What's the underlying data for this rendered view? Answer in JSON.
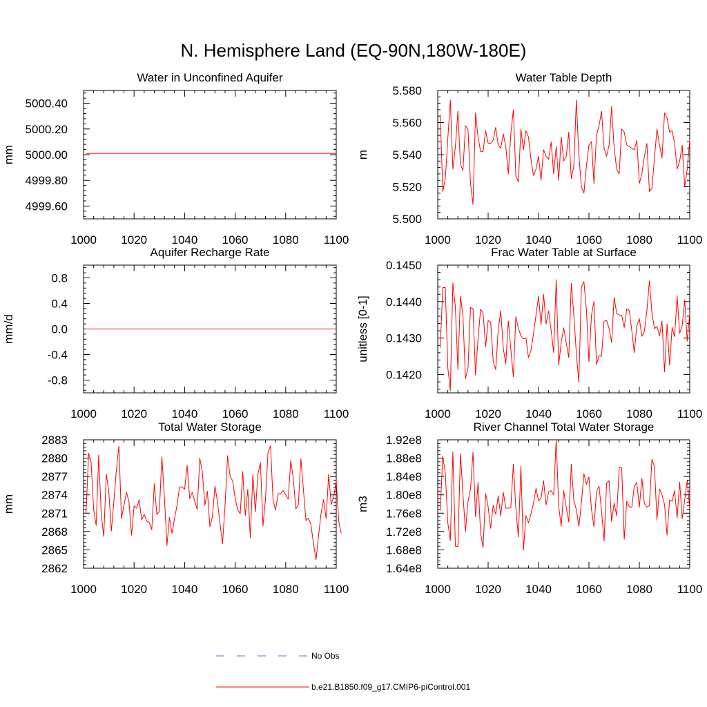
{
  "title": "N. Hemisphere Land (EQ-90N,180W-180E)",
  "colors": {
    "model": "#ff0000",
    "obs": "#5a6fd6",
    "axis": "#000000"
  },
  "legend": {
    "obs_label": "No Obs",
    "model_label": "b.e21.B1850.f09_g17.CMIP6-piControl.001"
  },
  "chart_data": [
    {
      "type": "line",
      "title": "Water in Unconfined Aquifer",
      "xlabel": "",
      "ylabel": "mm",
      "xlim": [
        1000,
        1100
      ],
      "ylim": [
        4999.5,
        5000.5
      ],
      "xticks": [
        1000,
        1020,
        1040,
        1060,
        1080,
        1100
      ],
      "xtick_labels": [
        "1000",
        "1020",
        "1040",
        "1060",
        "1080",
        "1100"
      ],
      "yticks": [
        4999.6,
        4999.8,
        5000.0,
        5000.2,
        5000.4
      ],
      "ytick_labels": [
        "4999.60",
        "4999.80",
        "5000.00",
        "5000.20",
        "5000.40"
      ],
      "x_start": 1001,
      "values": [
        5000.01,
        5000.01,
        5000.01,
        5000.01,
        5000.01,
        5000.01,
        5000.01,
        5000.01,
        5000.01,
        5000.01,
        5000.01,
        5000.01,
        5000.01,
        5000.01,
        5000.01,
        5000.01,
        5000.01,
        5000.01,
        5000.01,
        5000.01,
        5000.01,
        5000.01,
        5000.01,
        5000.01,
        5000.01,
        5000.01,
        5000.01,
        5000.01,
        5000.01,
        5000.01,
        5000.01,
        5000.01,
        5000.01,
        5000.01,
        5000.01,
        5000.01,
        5000.01,
        5000.01,
        5000.01,
        5000.01,
        5000.01,
        5000.01,
        5000.01,
        5000.01,
        5000.01,
        5000.01,
        5000.01,
        5000.01,
        5000.01,
        5000.01,
        5000.01,
        5000.01,
        5000.01,
        5000.01,
        5000.01,
        5000.01,
        5000.01,
        5000.01,
        5000.01,
        5000.01,
        5000.01,
        5000.01,
        5000.01,
        5000.01,
        5000.01,
        5000.01,
        5000.01,
        5000.01,
        5000.01,
        5000.01,
        5000.01,
        5000.01,
        5000.01,
        5000.01,
        5000.01,
        5000.01,
        5000.01,
        5000.01,
        5000.01,
        5000.01,
        5000.01,
        5000.01,
        5000.01,
        5000.01,
        5000.01,
        5000.01,
        5000.01,
        5000.01,
        5000.01,
        5000.01,
        5000.01,
        5000.01,
        5000.01,
        5000.01,
        5000.01,
        5000.01,
        5000.01,
        5000.01,
        5000.01,
        5000.01
      ]
    },
    {
      "type": "line",
      "title": "Water Table Depth",
      "xlabel": "",
      "ylabel": "m",
      "xlim": [
        1000,
        1100
      ],
      "ylim": [
        5.5,
        5.58
      ],
      "xticks": [
        1000,
        1020,
        1040,
        1060,
        1080,
        1100
      ],
      "xtick_labels": [
        "1000",
        "1020",
        "1040",
        "1060",
        "1080",
        "1100"
      ],
      "yticks": [
        5.5,
        5.52,
        5.54,
        5.56,
        5.58
      ],
      "ytick_labels": [
        "5.500",
        "5.520",
        "5.540",
        "5.560",
        "5.580"
      ],
      "x_start": 1001,
      "values": [
        5.565,
        5.517,
        5.525,
        5.55,
        5.574,
        5.531,
        5.545,
        5.567,
        5.534,
        5.53,
        5.558,
        5.556,
        5.522,
        5.509,
        5.566,
        5.551,
        5.542,
        5.542,
        5.555,
        5.547,
        5.547,
        5.549,
        5.557,
        5.546,
        5.544,
        5.553,
        5.545,
        5.528,
        5.553,
        5.568,
        5.527,
        5.523,
        5.556,
        5.543,
        5.555,
        5.551,
        5.537,
        5.527,
        5.531,
        5.539,
        5.524,
        5.543,
        5.539,
        5.537,
        5.548,
        5.528,
        5.545,
        5.524,
        5.551,
        5.536,
        5.539,
        5.554,
        5.525,
        5.533,
        5.574,
        5.54,
        5.52,
        5.516,
        5.533,
        5.546,
        5.548,
        5.522,
        5.552,
        5.558,
        5.567,
        5.544,
        5.539,
        5.546,
        5.57,
        5.544,
        5.531,
        5.528,
        5.556,
        5.554,
        5.546,
        5.545,
        5.544,
        5.543,
        5.549,
        5.522,
        5.528,
        5.539,
        5.547,
        5.517,
        5.519,
        5.538,
        5.556,
        5.546,
        5.538,
        5.566,
        5.563,
        5.554,
        5.555,
        5.547,
        5.531,
        5.536,
        5.546,
        5.52,
        5.531,
        5.549
      ]
    },
    {
      "type": "line",
      "title": "Aquifer Recharge Rate",
      "xlabel": "",
      "ylabel": "mm/d",
      "xlim": [
        1000,
        1100
      ],
      "ylim": [
        -1.0,
        1.0
      ],
      "xticks": [
        1000,
        1020,
        1040,
        1060,
        1080,
        1100
      ],
      "xtick_labels": [
        "1000",
        "1020",
        "1040",
        "1060",
        "1080",
        "1100"
      ],
      "yticks": [
        -0.8,
        -0.4,
        0.0,
        0.4,
        0.8
      ],
      "ytick_labels": [
        "-0.8",
        "-0.4",
        "0.0",
        "0.4",
        "0.8"
      ],
      "x_start": 1001,
      "values": [
        0,
        0,
        0,
        0,
        0,
        0,
        0,
        0,
        0,
        0,
        0,
        0,
        0,
        0,
        0,
        0,
        0,
        0,
        0,
        0,
        0,
        0,
        0,
        0,
        0,
        0,
        0,
        0,
        0,
        0,
        0,
        0,
        0,
        0,
        0,
        0,
        0,
        0,
        0,
        0,
        0,
        0,
        0,
        0,
        0,
        0,
        0,
        0,
        0,
        0,
        0,
        0,
        0,
        0,
        0,
        0,
        0,
        0,
        0,
        0,
        0,
        0,
        0,
        0,
        0,
        0,
        0,
        0,
        0,
        0,
        0,
        0,
        0,
        0,
        0,
        0,
        0,
        0,
        0,
        0,
        0,
        0,
        0,
        0,
        0,
        0,
        0,
        0,
        0,
        0,
        0,
        0,
        0,
        0,
        0,
        0,
        0,
        0,
        0,
        0
      ]
    },
    {
      "type": "line",
      "title": "Frac Water Table at Surface",
      "xlabel": "",
      "ylabel": "unitless [0-1]",
      "xlim": [
        1000,
        1100
      ],
      "ylim": [
        0.1415,
        0.145
      ],
      "xticks": [
        1000,
        1020,
        1040,
        1060,
        1080,
        1100
      ],
      "xtick_labels": [
        "1000",
        "1020",
        "1040",
        "1060",
        "1080",
        "1100"
      ],
      "yticks": [
        0.142,
        0.143,
        0.144,
        0.145
      ],
      "ytick_labels": [
        "0.1420",
        "0.1430",
        "0.1440",
        "0.1450"
      ],
      "x_start": 1001,
      "values": [
        0.14274,
        0.14438,
        0.14439,
        0.14219,
        0.14156,
        0.14451,
        0.14385,
        0.14214,
        0.14415,
        0.14363,
        0.14189,
        0.14217,
        0.14384,
        0.14381,
        0.14199,
        0.14297,
        0.14379,
        0.14369,
        0.14276,
        0.14348,
        0.14344,
        0.14237,
        0.14214,
        0.14321,
        0.14375,
        0.14273,
        0.14229,
        0.14347,
        0.1427,
        0.14194,
        0.14359,
        0.14327,
        0.14306,
        0.14298,
        0.14301,
        0.14247,
        0.14267,
        0.14312,
        0.14363,
        0.14415,
        0.14337,
        0.1442,
        0.14339,
        0.14375,
        0.14321,
        0.14261,
        0.1446,
        0.14226,
        0.14289,
        0.14328,
        0.14286,
        0.14247,
        0.1445,
        0.14364,
        0.14258,
        0.14179,
        0.1444,
        0.14455,
        0.14378,
        0.14235,
        0.14362,
        0.14401,
        0.14227,
        0.14252,
        0.1425,
        0.14346,
        0.14349,
        0.14326,
        0.14288,
        0.14412,
        0.14368,
        0.14363,
        0.14363,
        0.14329,
        0.1438,
        0.14376,
        0.14321,
        0.1426,
        0.14334,
        0.14353,
        0.14305,
        0.14319,
        0.14376,
        0.14457,
        0.14369,
        0.14326,
        0.14332,
        0.14306,
        0.14347,
        0.14207,
        0.14339,
        0.14226,
        0.14329,
        0.14304,
        0.14416,
        0.14313,
        0.14334,
        0.14405,
        0.14292,
        0.14369
      ]
    },
    {
      "type": "line",
      "title": "Total Water Storage",
      "xlabel": "",
      "ylabel": "mm",
      "xlim": [
        1000,
        1100
      ],
      "ylim": [
        2862,
        2883
      ],
      "xticks": [
        1000,
        1020,
        1040,
        1060,
        1080,
        1100
      ],
      "xtick_labels": [
        "1000",
        "1020",
        "1040",
        "1060",
        "1080",
        "1100"
      ],
      "yticks": [
        2862,
        2865,
        2868,
        2871,
        2874,
        2877,
        2880,
        2883
      ],
      "ytick_labels": [
        "2862",
        "2865",
        "2868",
        "2871",
        "2874",
        "2877",
        "2880",
        "2883"
      ],
      "x_start": 1001,
      "values": [
        2871.0,
        2880.8,
        2879.3,
        2871.6,
        2869.0,
        2880.5,
        2870.8,
        2867.2,
        2877.4,
        2874.5,
        2868.1,
        2872.9,
        2878.1,
        2882.0,
        2870.1,
        2872.3,
        2874.4,
        2872.8,
        2867.4,
        2872.2,
        2871.8,
        2873.2,
        2869.9,
        2870.8,
        2869.7,
        2869.5,
        2868.3,
        2875.8,
        2870.8,
        2871.3,
        2880.2,
        2873.6,
        2865.7,
        2870.3,
        2867.7,
        2870.1,
        2872.3,
        2875.3,
        2875.3,
        2874.9,
        2878.8,
        2873.4,
        2874.4,
        2873.0,
        2871.6,
        2880.0,
        2877.8,
        2872.3,
        2874.6,
        2868.8,
        2870.4,
        2875.4,
        2872.9,
        2869.3,
        2866.0,
        2872.3,
        2880.4,
        2877.0,
        2876.3,
        2873.4,
        2871.6,
        2870.9,
        2877.8,
        2870.6,
        2874.9,
        2867.0,
        2877.3,
        2871.2,
        2877.4,
        2879.3,
        2868.9,
        2873.3,
        2881.0,
        2882.0,
        2873.1,
        2871.5,
        2874.2,
        2874.2,
        2874.7,
        2874.0,
        2873.3,
        2879.6,
        2876.7,
        2871.7,
        2872.4,
        2879.9,
        2874.9,
        2869.8,
        2870.2,
        2869.1,
        2866.0,
        2863.4,
        2867.3,
        2871.0,
        2873.2,
        2870.1,
        2877.4,
        2872.4,
        2873.7,
        2876.3,
        2869.6,
        2867.7
      ]
    },
    {
      "type": "line",
      "title": "River Channel Total Water Storage",
      "xlabel": "",
      "ylabel": "m3",
      "xlim": [
        1000,
        1100
      ],
      "ylim": [
        164000000,
        192000000
      ],
      "xticks": [
        1000,
        1020,
        1040,
        1060,
        1080,
        1100
      ],
      "xtick_labels": [
        "1000",
        "1020",
        "1040",
        "1060",
        "1080",
        "1100"
      ],
      "yticks": [
        164000000,
        168000000,
        172000000,
        176000000,
        180000000,
        184000000,
        188000000,
        192000000
      ],
      "ytick_labels": [
        "1.64e8",
        "1.68e8",
        "1.72e8",
        "1.76e8",
        "1.80e8",
        "1.84e8",
        "1.88e8",
        "1.92e8"
      ],
      "x_start": 1001,
      "values": [
        176600000,
        188400000,
        184800000,
        173900000,
        170000000,
        189400000,
        168800000,
        168700000,
        189000000,
        180200000,
        172000000,
        178500000,
        181300000,
        189300000,
        175200000,
        182700000,
        171700000,
        168500000,
        180300000,
        177400000,
        172700000,
        177700000,
        175800000,
        179800000,
        175400000,
        180600000,
        177100000,
        177100000,
        177200000,
        186700000,
        177000000,
        170800000,
        186200000,
        167900000,
        175500000,
        173900000,
        175800000,
        178200000,
        181400000,
        178700000,
        179300000,
        183100000,
        177800000,
        180700000,
        180900000,
        180000000,
        192000000,
        177500000,
        173100000,
        180900000,
        177200000,
        174100000,
        186700000,
        178800000,
        176800000,
        173100000,
        178200000,
        184600000,
        182300000,
        183900000,
        176800000,
        173000000,
        180700000,
        181900000,
        176500000,
        169900000,
        182500000,
        183100000,
        174200000,
        178200000,
        175500000,
        185900000,
        185900000,
        170300000,
        178600000,
        177400000,
        177300000,
        181900000,
        182700000,
        177300000,
        183600000,
        178100000,
        177300000,
        177700000,
        187800000,
        186100000,
        174500000,
        181300000,
        180000000,
        177900000,
        171200000,
        178900000,
        178600000,
        180900000,
        175000000,
        182800000,
        174800000,
        178900000,
        183100000,
        177000000
      ]
    }
  ]
}
